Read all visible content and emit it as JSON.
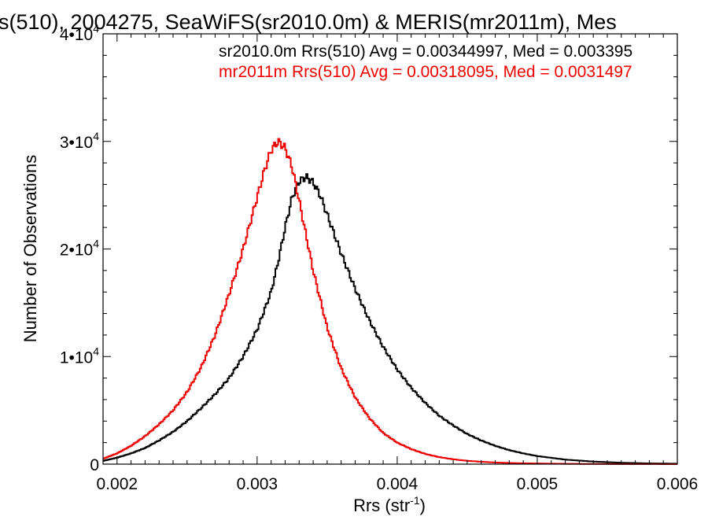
{
  "chart_data": {
    "type": "line",
    "title": "s(510), 2004275, SeaWiFS(sr2010.0m) & MERIS(mr2011m), Mes",
    "xlabel": "Rrs (str",
    "xlabel_sup": "-1",
    "xlabel_close": ")",
    "ylabel": "Number of Observations",
    "xlim": [
      0.0019,
      0.006
    ],
    "ylim": [
      0,
      40000
    ],
    "x_ticks": [
      {
        "value": 0.002,
        "label": "0.002"
      },
      {
        "value": 0.003,
        "label": "0.003"
      },
      {
        "value": 0.004,
        "label": "0.004"
      },
      {
        "value": 0.005,
        "label": "0.005"
      },
      {
        "value": 0.006,
        "label": "0.006"
      }
    ],
    "y_ticks": [
      {
        "value": 0,
        "label": "0",
        "sup": ""
      },
      {
        "value": 10000,
        "label": "1•10",
        "sup": "4"
      },
      {
        "value": 20000,
        "label": "2•10",
        "sup": "4"
      },
      {
        "value": 30000,
        "label": "3•10",
        "sup": "4"
      },
      {
        "value": 40000,
        "label": "4•10",
        "sup": "4"
      }
    ],
    "grid": false,
    "legend_position": "top-right",
    "series": [
      {
        "name": "sr2010.0m Rrs(510) Avg = 0.00344997, Med = 0.003395",
        "color": "#000000",
        "x": [
          0.0019,
          0.002,
          0.0021,
          0.0022,
          0.0023,
          0.0024,
          0.0025,
          0.0026,
          0.0027,
          0.0028,
          0.0029,
          0.003,
          0.0031,
          0.00315,
          0.0032,
          0.00325,
          0.0033,
          0.00335,
          0.0034,
          0.00345,
          0.0035,
          0.0036,
          0.0037,
          0.0038,
          0.0039,
          0.004,
          0.0041,
          0.0042,
          0.0043,
          0.0044,
          0.0045,
          0.0046,
          0.0047,
          0.0048,
          0.0049,
          0.005,
          0.0052,
          0.0054,
          0.0056,
          0.0058,
          0.006
        ],
        "y": [
          300,
          600,
          1000,
          1500,
          2200,
          3000,
          4000,
          5200,
          6500,
          8000,
          10000,
          12500,
          16000,
          18800,
          22000,
          24800,
          26300,
          26700,
          26200,
          25000,
          23200,
          19600,
          16300,
          13400,
          10900,
          8800,
          7100,
          5700,
          4500,
          3600,
          2800,
          2200,
          1700,
          1300,
          1000,
          750,
          420,
          240,
          130,
          70,
          40
        ]
      },
      {
        "name": "mr2011m Rrs(510) Avg = 0.00318095, Med = 0.0031497",
        "color": "#ee0000",
        "x": [
          0.0019,
          0.002,
          0.0021,
          0.0022,
          0.0023,
          0.0024,
          0.0025,
          0.0026,
          0.0027,
          0.0028,
          0.0029,
          0.003,
          0.00305,
          0.0031,
          0.00315,
          0.0032,
          0.00325,
          0.0033,
          0.0034,
          0.0035,
          0.0036,
          0.0037,
          0.0038,
          0.0039,
          0.004,
          0.0041,
          0.0042,
          0.0043,
          0.0044,
          0.0045,
          0.0046,
          0.0047,
          0.0048,
          0.0049,
          0.005,
          0.0052,
          0.0054,
          0.0056,
          0.0058,
          0.006
        ],
        "y": [
          500,
          1000,
          1700,
          2600,
          3700,
          5000,
          6700,
          9000,
          12000,
          15800,
          20000,
          24800,
          27200,
          29200,
          30000,
          29400,
          27600,
          24500,
          18000,
          12700,
          8900,
          6200,
          4300,
          2900,
          2000,
          1400,
          950,
          650,
          450,
          310,
          220,
          150,
          110,
          80,
          60,
          30,
          18,
          10,
          6,
          3
        ]
      }
    ]
  }
}
